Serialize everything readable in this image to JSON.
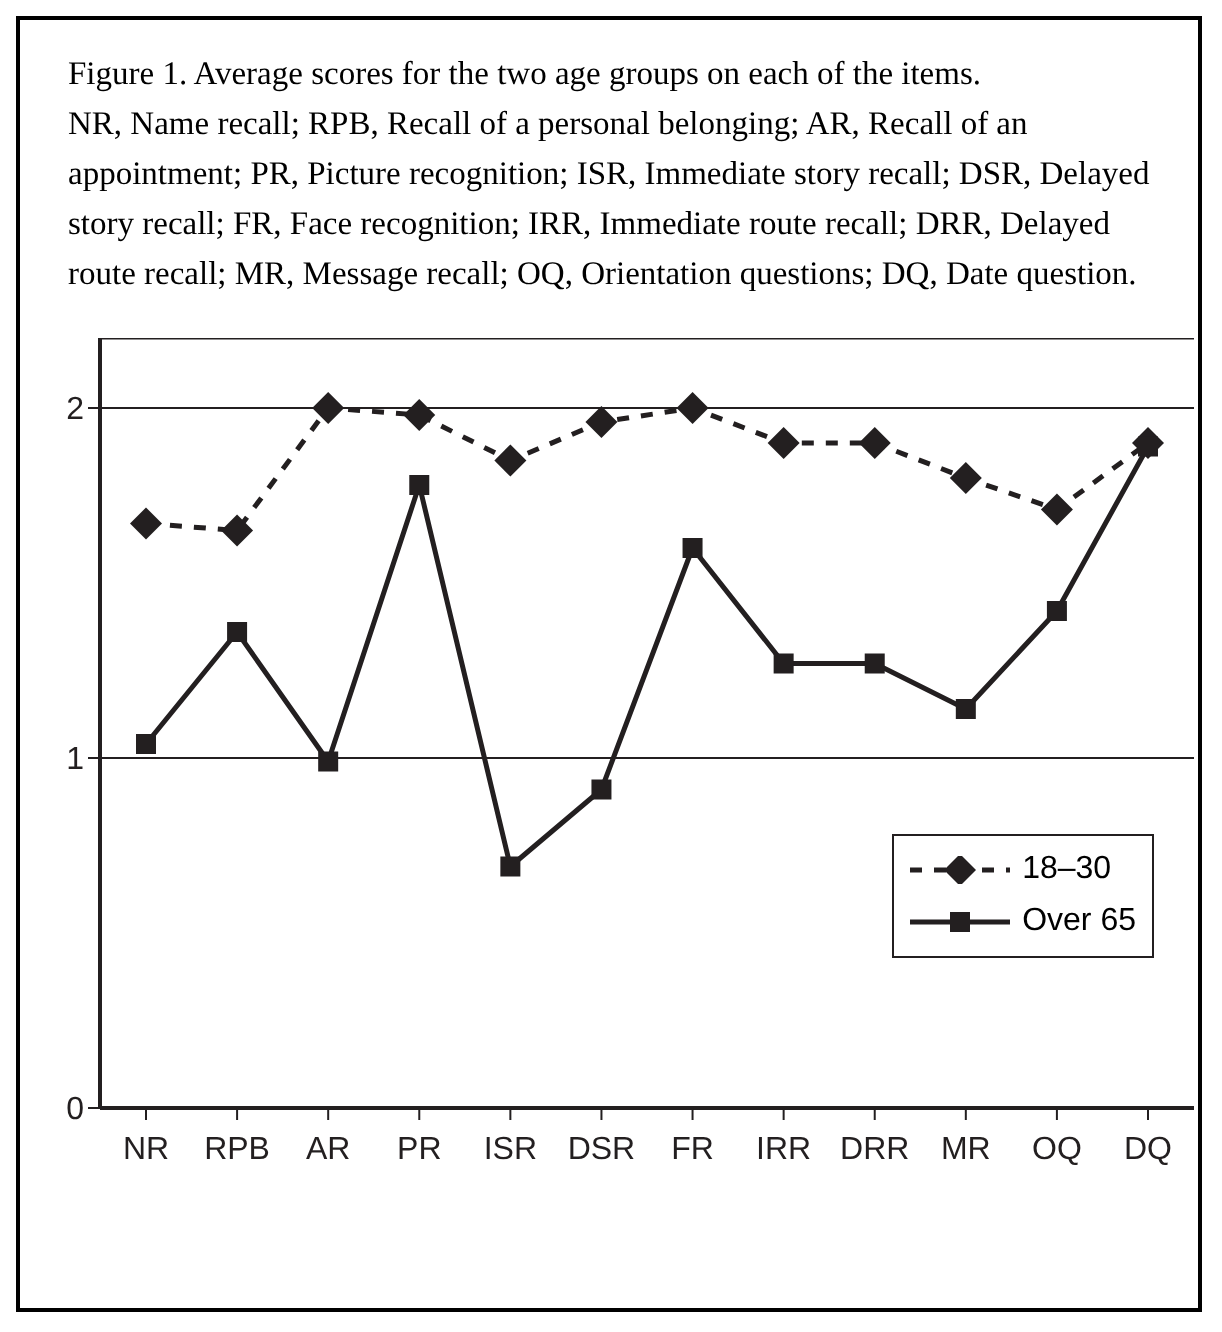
{
  "chart_data": {
    "type": "line",
    "title": "Figure 1.  Average scores for the two age groups on each of the items.",
    "subtitle": "NR, Name recall; RPB, Recall of a personal belonging; AR, Recall of an appointment; PR, Picture recognition; ISR, Immediate story recall; DSR, Delayed story recall; FR, Face recognition; IRR, Immediate route recall; DRR, Delayed route recall; MR, Message recall; OQ, Orientation questions; DQ, Date question.",
    "categories": [
      "NR",
      "RPB",
      "AR",
      "PR",
      "ISR",
      "DSR",
      "FR",
      "IRR",
      "DRR",
      "MR",
      "OQ",
      "DQ"
    ],
    "series": [
      {
        "name": "18–30",
        "color": "#231f20",
        "marker": "diamond",
        "line_style": "dashed",
        "values": [
          1.67,
          1.65,
          2.0,
          1.98,
          1.85,
          1.96,
          2.0,
          1.9,
          1.9,
          1.8,
          1.71,
          1.9
        ]
      },
      {
        "name": "Over 65",
        "color": "#231f20",
        "marker": "square",
        "line_style": "solid",
        "values": [
          1.04,
          1.36,
          0.99,
          1.78,
          0.69,
          0.91,
          1.6,
          1.27,
          1.27,
          1.14,
          1.42,
          1.89
        ]
      }
    ],
    "ylim": [
      0,
      2.2
    ],
    "yticks": [
      0,
      1,
      2
    ],
    "grid": "y",
    "legend": "bottom right"
  }
}
